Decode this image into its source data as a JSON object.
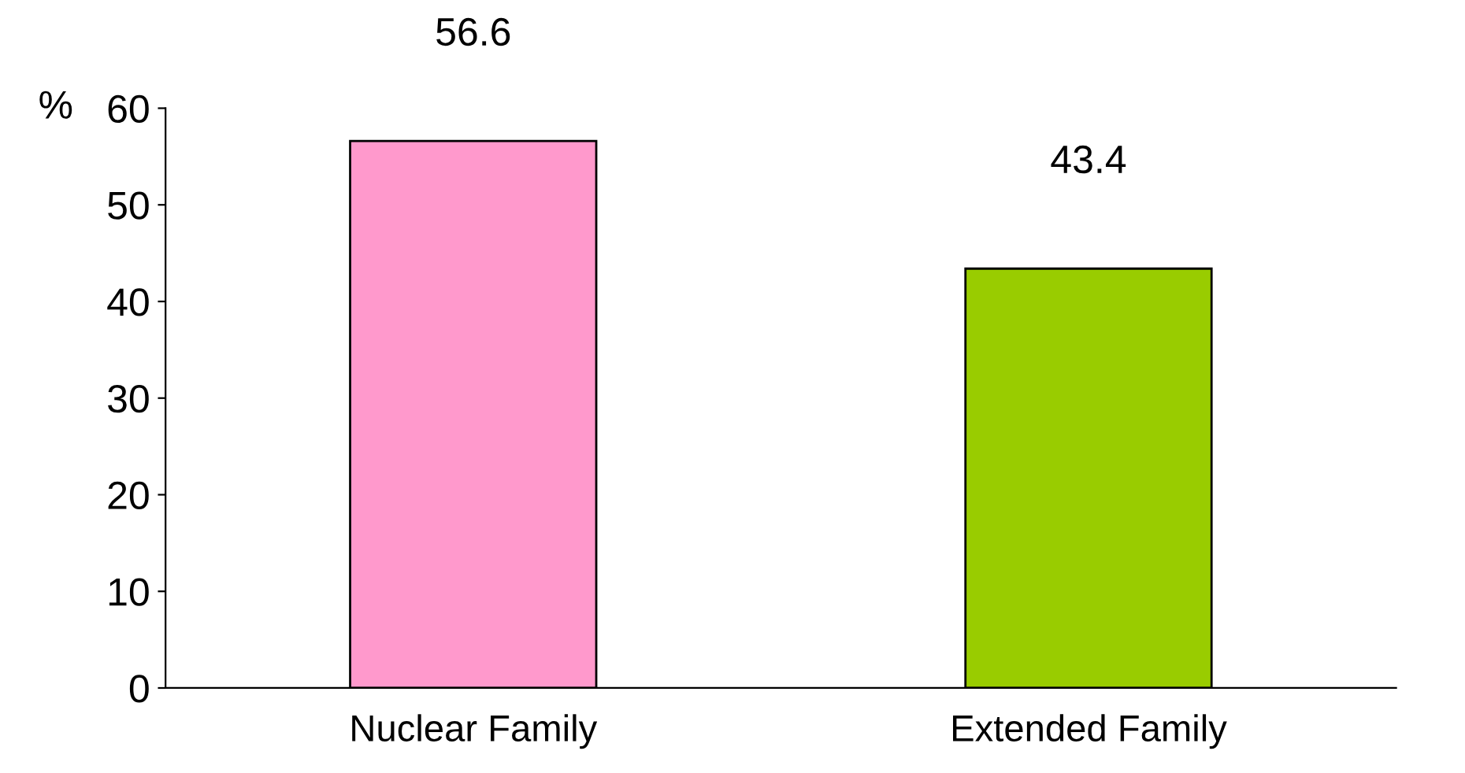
{
  "chart_data": {
    "type": "bar",
    "ylabel": "%",
    "categories": [
      "Nuclear Family",
      "Extended Family"
    ],
    "values": [
      56.6,
      43.4
    ],
    "colors": [
      "#ff99cc",
      "#99cc00"
    ],
    "ylim": [
      0,
      60
    ],
    "yticks": [
      0,
      10,
      20,
      30,
      40,
      50,
      60
    ],
    "grid": false,
    "data_labels": true
  }
}
